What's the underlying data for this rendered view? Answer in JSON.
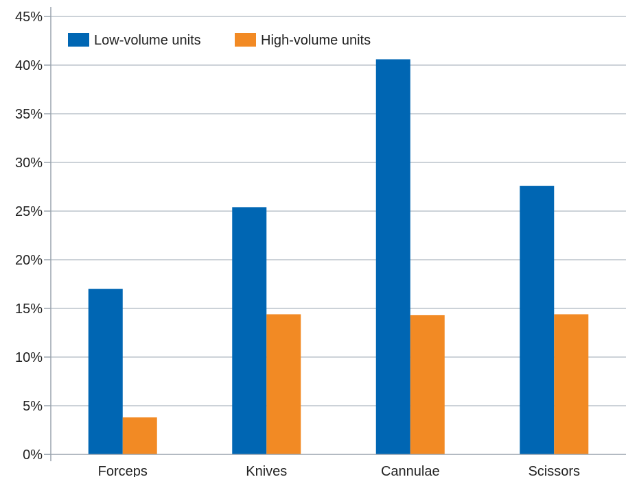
{
  "chart_data": {
    "type": "bar",
    "title": "",
    "xlabel": "",
    "ylabel": "",
    "categories": [
      "Forceps",
      "Knives",
      "Cannulae",
      "Scissors"
    ],
    "series": [
      {
        "name": "Low-volume units",
        "color": "#0066b3",
        "values": [
          17.0,
          25.4,
          40.6,
          27.6
        ]
      },
      {
        "name": "High-volume units",
        "color": "#f28a24",
        "values": [
          3.8,
          14.4,
          14.3,
          14.4
        ]
      }
    ],
    "ylim": [
      0,
      45
    ],
    "yticks": [
      0,
      5,
      10,
      15,
      20,
      25,
      30,
      35,
      40,
      45
    ],
    "ytick_format": "percent",
    "grid": true,
    "legend_position": "top-left"
  }
}
